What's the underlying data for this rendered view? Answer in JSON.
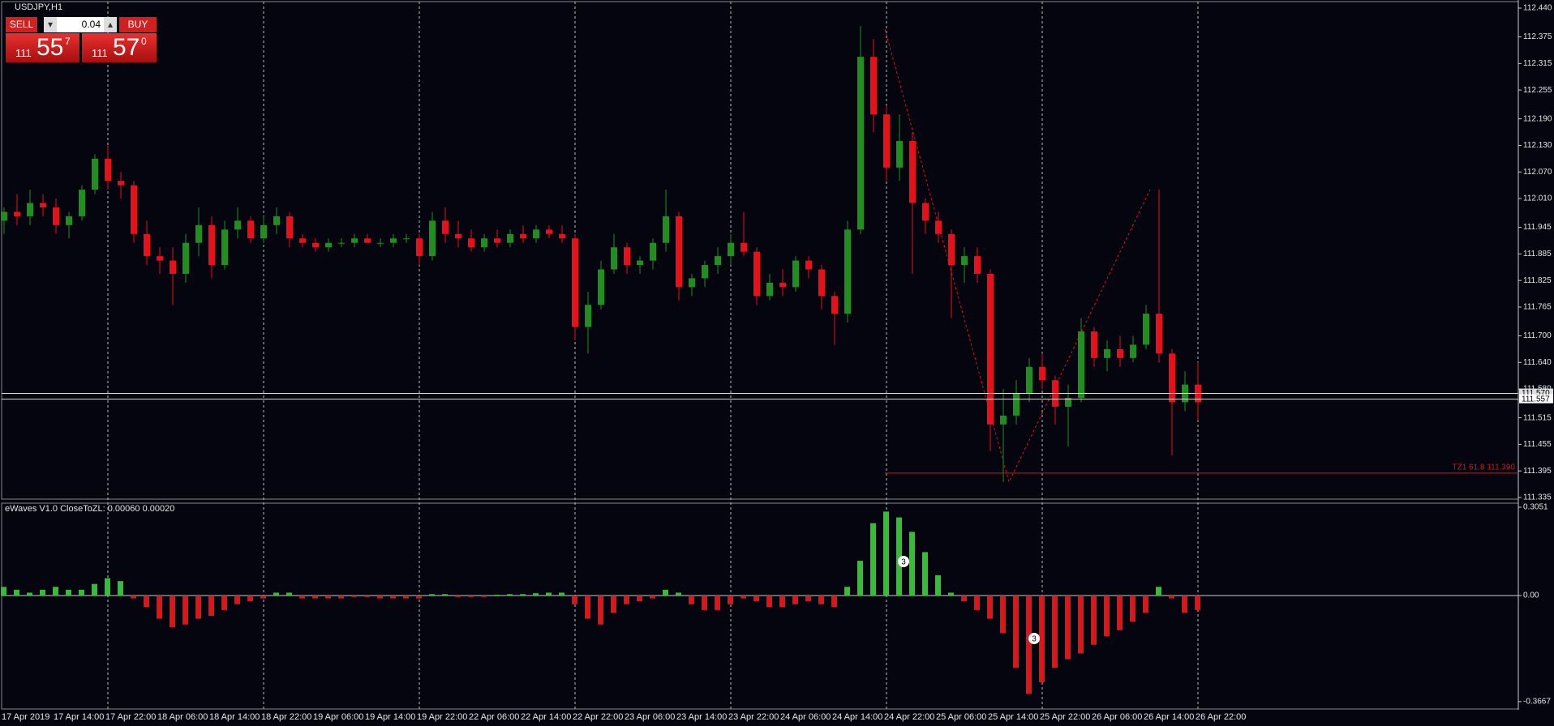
{
  "trade_panel": {
    "sell": "SELL",
    "buy": "BUY",
    "volume": "0.04",
    "sell_price": {
      "big": "111",
      "main": "55",
      "small": "7"
    },
    "buy_price": {
      "big": "111",
      "main": "57",
      "small": "0"
    }
  },
  "chart_data": [
    {
      "type": "candlestick",
      "title": "USDJPY,H1",
      "categories": [
        "17 Apr 2019",
        null,
        null,
        null,
        "17 Apr 14:00",
        null,
        null,
        null,
        "17 Apr 22:00",
        null,
        null,
        null,
        "18 Apr 06:00",
        null,
        null,
        null,
        "18 Apr 14:00",
        null,
        null,
        null,
        "18 Apr 22:00",
        null,
        null,
        null,
        "19 Apr 06:00",
        null,
        null,
        null,
        "19 Apr 14:00",
        null,
        null,
        null,
        "19 Apr 22:00",
        null,
        null,
        null,
        "22 Apr 06:00",
        null,
        null,
        null,
        "22 Apr 14:00",
        null,
        null,
        null,
        "22 Apr 22:00",
        null,
        null,
        null,
        "23 Apr 06:00",
        null,
        null,
        null,
        "23 Apr 14:00",
        null,
        null,
        null,
        "23 Apr 22:00",
        null,
        null,
        null,
        "24 Apr 06:00",
        null,
        null,
        null,
        "24 Apr 14:00",
        null,
        null,
        null,
        "24 Apr 22:00",
        null,
        null,
        null,
        "25 Apr 06:00",
        null,
        null,
        null,
        "25 Apr 14:00",
        null,
        null,
        null,
        "25 Apr 22:00",
        null,
        null,
        null,
        "26 Apr 06:00",
        null,
        null,
        null,
        "26 Apr 14:00",
        null,
        null,
        null,
        "26 Apr 22:00"
      ],
      "open": [
        111.96,
        111.98,
        111.97,
        112.0,
        111.99,
        111.95,
        111.97,
        112.03,
        112.1,
        112.05,
        112.04,
        111.93,
        111.88,
        111.87,
        111.84,
        111.91,
        111.95,
        111.86,
        111.94,
        111.96,
        111.92,
        111.95,
        111.97,
        111.92,
        111.91,
        111.9,
        111.91,
        111.91,
        111.92,
        111.91,
        111.91,
        111.92,
        111.92,
        111.88,
        111.96,
        111.93,
        111.92,
        111.9,
        111.92,
        111.91,
        111.93,
        111.92,
        111.94,
        111.93,
        111.92,
        111.72,
        111.77,
        111.85,
        111.9,
        111.86,
        111.87,
        111.91,
        111.97,
        111.81,
        111.83,
        111.86,
        111.88,
        111.91,
        111.89,
        111.79,
        111.82,
        111.81,
        111.87,
        111.85,
        111.79,
        111.75,
        111.94,
        112.33,
        112.2,
        112.08,
        112.14,
        112.0,
        111.96,
        111.93,
        111.86,
        111.88,
        111.84,
        111.5,
        111.52,
        111.57,
        111.63,
        111.6,
        111.54,
        111.56,
        111.71,
        111.65,
        111.67,
        111.65,
        111.68,
        111.75,
        111.66,
        111.55,
        111.59
      ],
      "high": [
        111.99,
        112.02,
        112.03,
        112.02,
        112.01,
        111.98,
        112.04,
        112.11,
        112.13,
        112.07,
        112.05,
        111.96,
        111.9,
        111.9,
        111.93,
        111.99,
        111.97,
        111.96,
        111.99,
        111.97,
        111.97,
        111.99,
        111.98,
        111.93,
        111.92,
        111.92,
        111.92,
        111.93,
        111.93,
        111.92,
        111.93,
        111.93,
        111.93,
        111.98,
        111.99,
        111.96,
        111.94,
        111.93,
        111.94,
        111.94,
        111.95,
        111.95,
        111.95,
        111.95,
        111.93,
        111.8,
        111.87,
        111.93,
        111.91,
        111.88,
        111.92,
        112.03,
        111.98,
        111.84,
        111.87,
        111.9,
        111.93,
        111.98,
        111.9,
        111.84,
        111.85,
        111.88,
        111.88,
        111.86,
        111.8,
        111.96,
        112.4,
        112.37,
        112.22,
        112.2,
        112.16,
        112.01,
        111.98,
        111.94,
        111.9,
        111.9,
        111.85,
        111.58,
        111.6,
        111.65,
        111.66,
        111.61,
        111.59,
        111.74,
        111.72,
        111.69,
        111.7,
        111.7,
        111.77,
        112.03,
        111.67,
        111.62,
        111.64
      ],
      "low": [
        111.93,
        111.95,
        111.95,
        111.97,
        111.93,
        111.92,
        111.96,
        112.02,
        112.03,
        112.01,
        111.91,
        111.86,
        111.84,
        111.77,
        111.82,
        111.88,
        111.83,
        111.85,
        111.92,
        111.91,
        111.91,
        111.93,
        111.9,
        111.9,
        111.89,
        111.89,
        111.9,
        111.9,
        111.91,
        111.9,
        111.9,
        111.91,
        111.86,
        111.87,
        111.91,
        111.9,
        111.89,
        111.89,
        111.9,
        111.9,
        111.91,
        111.91,
        111.92,
        111.91,
        111.69,
        111.66,
        111.76,
        111.84,
        111.84,
        111.84,
        111.85,
        111.89,
        111.78,
        111.79,
        111.81,
        111.84,
        111.86,
        111.88,
        111.77,
        111.78,
        111.79,
        111.8,
        111.83,
        111.76,
        111.68,
        111.73,
        111.93,
        112.16,
        112.05,
        112.05,
        111.84,
        111.93,
        111.91,
        111.74,
        111.82,
        111.82,
        111.44,
        111.37,
        111.5,
        111.55,
        111.58,
        111.5,
        111.45,
        111.55,
        111.63,
        111.62,
        111.63,
        111.64,
        111.67,
        111.64,
        111.43,
        111.53,
        111.51
      ],
      "close": [
        111.98,
        111.97,
        112.0,
        111.99,
        111.95,
        111.97,
        112.03,
        112.1,
        112.05,
        112.04,
        111.93,
        111.88,
        111.87,
        111.84,
        111.91,
        111.95,
        111.86,
        111.94,
        111.96,
        111.92,
        111.95,
        111.97,
        111.92,
        111.91,
        111.9,
        111.91,
        111.91,
        111.92,
        111.91,
        111.91,
        111.92,
        111.92,
        111.88,
        111.96,
        111.93,
        111.92,
        111.9,
        111.92,
        111.91,
        111.93,
        111.92,
        111.94,
        111.93,
        111.92,
        111.72,
        111.77,
        111.85,
        111.9,
        111.86,
        111.87,
        111.91,
        111.97,
        111.81,
        111.83,
        111.86,
        111.88,
        111.91,
        111.89,
        111.79,
        111.82,
        111.81,
        111.87,
        111.85,
        111.79,
        111.75,
        111.94,
        112.33,
        112.2,
        112.08,
        112.14,
        112.0,
        111.96,
        111.93,
        111.86,
        111.88,
        111.84,
        111.5,
        111.52,
        111.57,
        111.63,
        111.6,
        111.54,
        111.56,
        111.71,
        111.65,
        111.67,
        111.65,
        111.68,
        111.75,
        111.66,
        111.55,
        111.59,
        111.55
      ],
      "up_color": "#1f8f1f",
      "down_color": "#e8101a",
      "ylim": [
        111.335,
        112.44
      ],
      "yticks": [
        {
          "value": 112.44,
          "label": "112.440"
        },
        112.375,
        112.315,
        112.255,
        {
          "value": 112.19,
          "label": "112.190"
        },
        {
          "value": 112.13,
          "label": "112.130"
        },
        {
          "value": 112.07,
          "label": "112.070"
        },
        {
          "value": 112.01,
          "label": "112.010"
        },
        111.945,
        111.885,
        111.825,
        111.765,
        {
          "value": 111.7,
          "label": "111.700"
        },
        {
          "value": 111.64,
          "label": "111.640"
        },
        {
          "value": 111.58,
          "label": "111.580"
        },
        111.515,
        111.455,
        111.395,
        111.335
      ],
      "price_lines": [
        {
          "value": 111.57,
          "label": "111.570"
        },
        {
          "value": 111.557,
          "label": "111.557"
        }
      ],
      "level": {
        "value": 111.39,
        "label": "TZ1 61.8  111.390"
      }
    },
    {
      "type": "bar",
      "title": "eWaves V1.0 CloseToZL: 0.00060 0.00020",
      "values": [
        0.03,
        0.02,
        0.01,
        0.02,
        0.03,
        0.02,
        0.02,
        0.04,
        0.06,
        0.05,
        -0.01,
        -0.04,
        -0.08,
        -0.11,
        -0.1,
        -0.08,
        -0.07,
        -0.05,
        -0.03,
        -0.02,
        -0.01,
        0.01,
        0.01,
        -0.01,
        -0.01,
        -0.01,
        -0.01,
        -0.005,
        -0.005,
        -0.01,
        -0.01,
        -0.01,
        -0.01,
        0.005,
        0.005,
        -0.005,
        -0.005,
        -0.005,
        0.003,
        0.005,
        0.005,
        0.008,
        0.01,
        0.01,
        -0.03,
        -0.08,
        -0.1,
        -0.06,
        -0.03,
        -0.02,
        -0.01,
        0.02,
        0.01,
        -0.03,
        -0.05,
        -0.05,
        -0.03,
        -0.01,
        -0.02,
        -0.04,
        -0.04,
        -0.03,
        -0.02,
        -0.03,
        -0.04,
        0.03,
        0.12,
        0.25,
        0.29,
        0.27,
        0.22,
        0.15,
        0.07,
        0.01,
        -0.02,
        -0.05,
        -0.08,
        -0.13,
        -0.25,
        -0.34,
        -0.3,
        -0.25,
        -0.22,
        -0.2,
        -0.17,
        -0.14,
        -0.12,
        -0.09,
        -0.06,
        0.03,
        -0.01,
        -0.06,
        -0.05
      ],
      "positive_color": "#32c032",
      "negative_color": "#e01414",
      "ylim": [
        -0.3667,
        0.3051
      ],
      "yticks": [
        0.3051,
        {
          "value": 0,
          "label": "0.00"
        },
        -0.3667
      ],
      "wave_labels": [
        "3",
        "3"
      ]
    }
  ]
}
